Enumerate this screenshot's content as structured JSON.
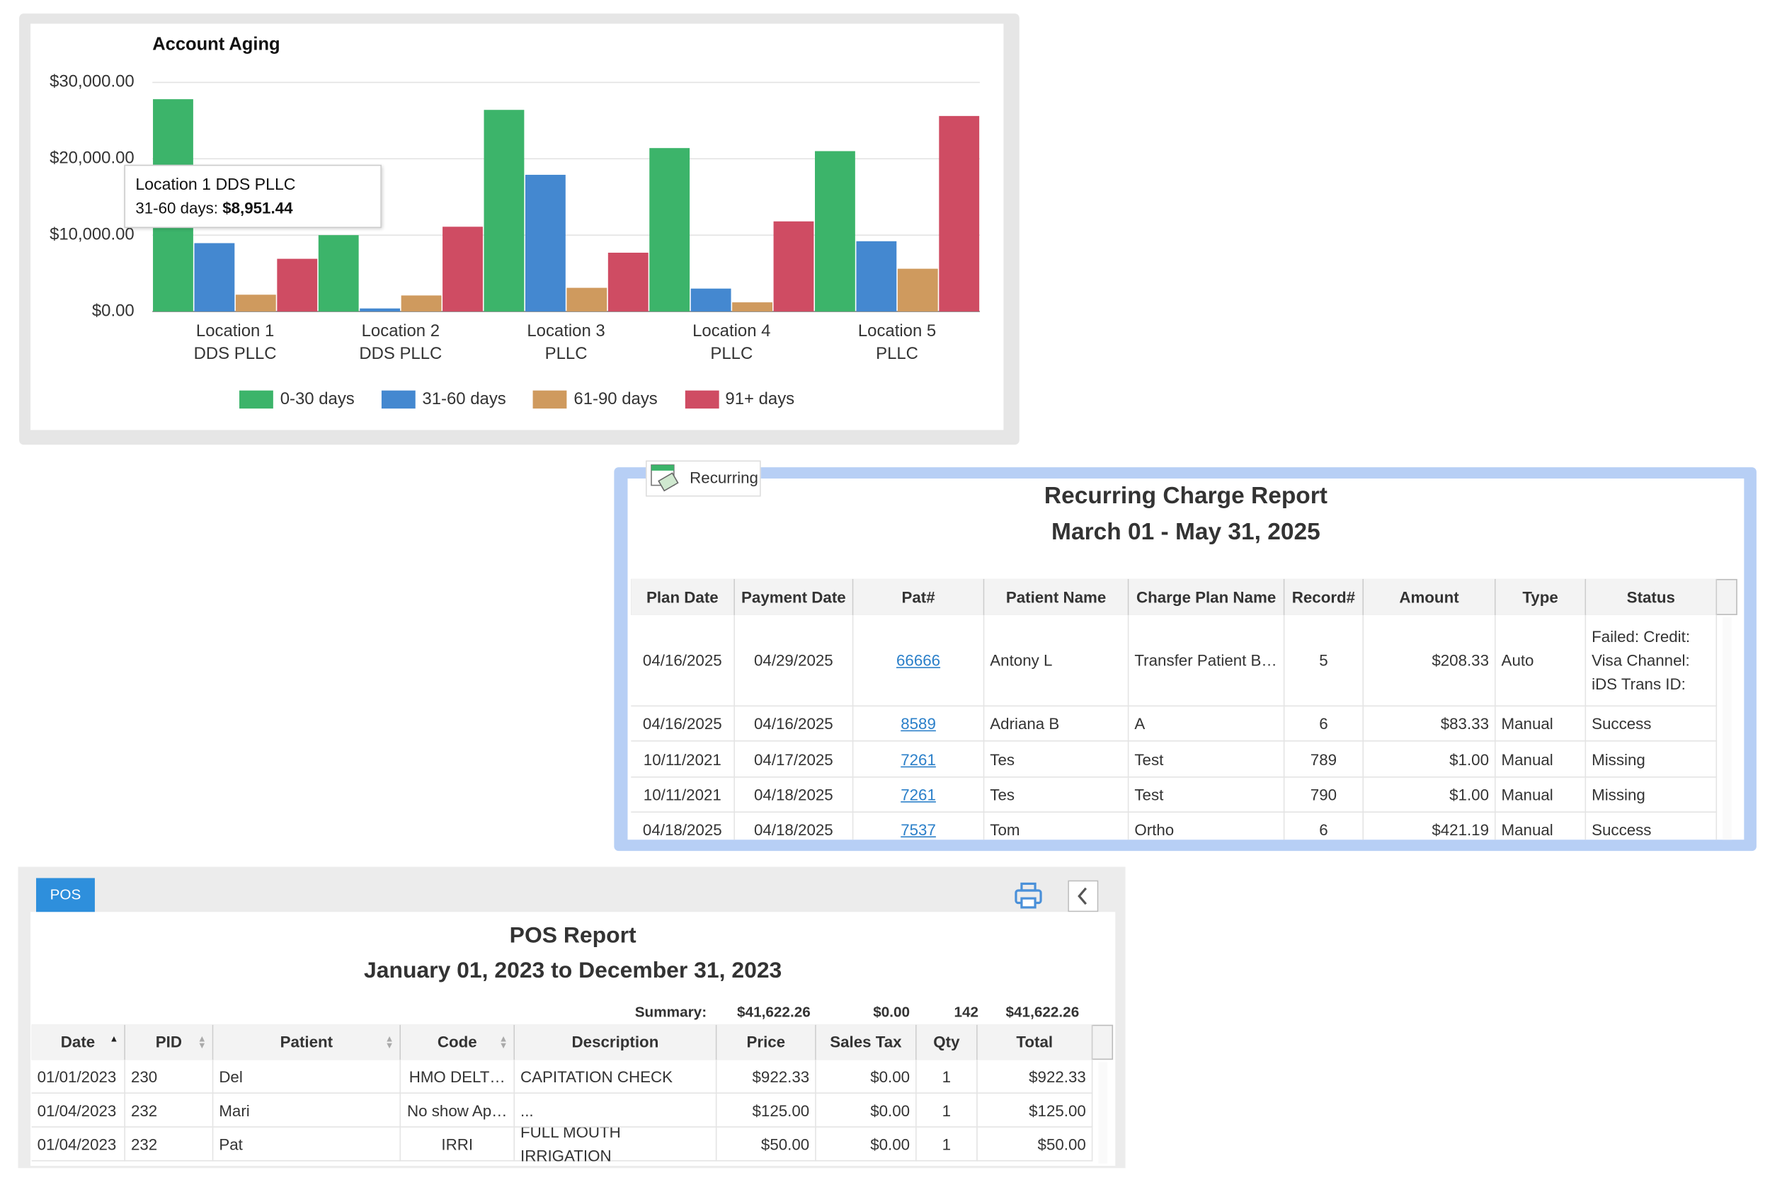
{
  "chart_data": {
    "type": "bar",
    "title": "Account Aging",
    "categories": [
      "Location 1\nDDS PLLC",
      "Location 2\nDDS PLLC",
      "Location 3\nPLLC",
      "Location 4\nPLLC",
      "Location 5\nPLLC"
    ],
    "series": [
      {
        "name": "0-30 days",
        "color": "#3cb46a",
        "values": [
          27800,
          10000,
          26400,
          21400,
          21000
        ]
      },
      {
        "name": "31-60 days",
        "color": "#4488d0",
        "values": [
          8951.44,
          400,
          17900,
          3000,
          9200
        ]
      },
      {
        "name": "61-90 days",
        "color": "#cf9a5e",
        "values": [
          2200,
          2100,
          3100,
          1200,
          5600
        ]
      },
      {
        "name": "91+ days",
        "color": "#cf4c63",
        "values": [
          6900,
          11100,
          7700,
          11800,
          25600
        ]
      }
    ],
    "ylim": [
      0,
      30000
    ],
    "yticks": [
      {
        "value": 0,
        "label": "$0.00"
      },
      {
        "value": 10000,
        "label": "$10,000.00"
      },
      {
        "value": 20000,
        "label": "$20,000.00"
      },
      {
        "value": 30000,
        "label": "$30,000.00"
      }
    ],
    "grid": true,
    "legend": "bottom",
    "tooltip": {
      "title": "Location 1 DDS PLLC",
      "label": "31-60 days:",
      "value": "$8,951.44"
    }
  },
  "recurring": {
    "tab": "Recurring",
    "title": "Recurring Charge Report",
    "subtitle": "March 01 - May 31, 2025",
    "columns": [
      "Plan Date",
      "Payment Date",
      "Pat#",
      "Patient Name",
      "Charge Plan Name",
      "Record#",
      "Amount",
      "Type",
      "Status"
    ],
    "rows": [
      [
        "04/16/2025",
        "04/29/2025",
        "66666",
        "Antony L",
        "Transfer Patient B…",
        "5",
        "$208.33",
        "Auto",
        "Failed: Credit:\nVisa Channel:\niDS Trans ID:"
      ],
      [
        "04/16/2025",
        "04/16/2025",
        "8589",
        "Adriana B",
        "A",
        "6",
        "$83.33",
        "Manual",
        "Success"
      ],
      [
        "10/11/2021",
        "04/17/2025",
        "7261",
        "Tes",
        "Test",
        "789",
        "$1.00",
        "Manual",
        "Missing"
      ],
      [
        "10/11/2021",
        "04/18/2025",
        "7261",
        "Tes",
        "Test",
        "790",
        "$1.00",
        "Manual",
        "Missing"
      ],
      [
        "04/18/2025",
        "04/18/2025",
        "7537",
        "Tom",
        "Ortho",
        "6",
        "$421.19",
        "Manual",
        "Success"
      ]
    ]
  },
  "pos": {
    "tab": "POS",
    "title": "POS Report",
    "subtitle": "January 01, 2023 to December 31, 2023",
    "summary": {
      "label": "Summary:",
      "price": "$41,622.26",
      "tax": "$0.00",
      "qty": "142",
      "total": "$41,622.26"
    },
    "columns": [
      "Date",
      "PID",
      "Patient",
      "Code",
      "Description",
      "Price",
      "Sales Tax",
      "Qty",
      "Total"
    ],
    "rows": [
      [
        "01/01/2023",
        "230",
        "Del",
        "HMO DELT…",
        "CAPITATION CHECK",
        "$922.33",
        "$0.00",
        "1",
        "$922.33"
      ],
      [
        "01/04/2023",
        "232",
        "Mari",
        "No show Ap…",
        "...",
        "$125.00",
        "$0.00",
        "1",
        "$125.00"
      ],
      [
        "01/04/2023",
        "232",
        "Pat",
        "IRRI",
        "FULL MOUTH IRRIGATION",
        "$50.00",
        "$0.00",
        "1",
        "$50.00"
      ]
    ]
  }
}
